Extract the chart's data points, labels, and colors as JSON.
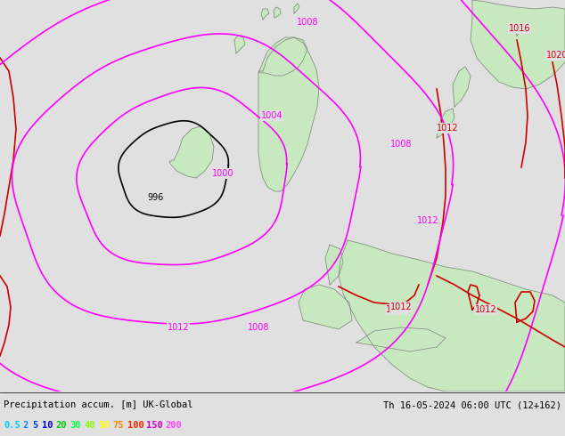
{
  "title_left": "Precipitation accum. [m] UK-Global",
  "title_right": "Th 16-05-2024 06:00 UTC (12+162)",
  "bg_color": "#e0e0e0",
  "land_color": "#c8e8c0",
  "sea_color": "#e0e0e0",
  "coast_color": "#808080",
  "isobar_magenta": "#ff00ff",
  "isobar_black": "#000000",
  "isobar_red": "#cc0000",
  "legend_items": [
    {
      "val": "0.5",
      "color": "#00ccff"
    },
    {
      "val": "2",
      "color": "#0088ff"
    },
    {
      "val": "5",
      "color": "#0044cc"
    },
    {
      "val": "10",
      "color": "#0000cc"
    },
    {
      "val": "20",
      "color": "#00cc00"
    },
    {
      "val": "30",
      "color": "#00ff44"
    },
    {
      "val": "40",
      "color": "#88ff00"
    },
    {
      "val": "50",
      "color": "#ffff00"
    },
    {
      "val": "75",
      "color": "#ff8800"
    },
    {
      "val": "100",
      "color": "#ff2200"
    },
    {
      "val": "150",
      "color": "#cc00cc"
    },
    {
      "val": "200",
      "color": "#ff44ff"
    }
  ]
}
